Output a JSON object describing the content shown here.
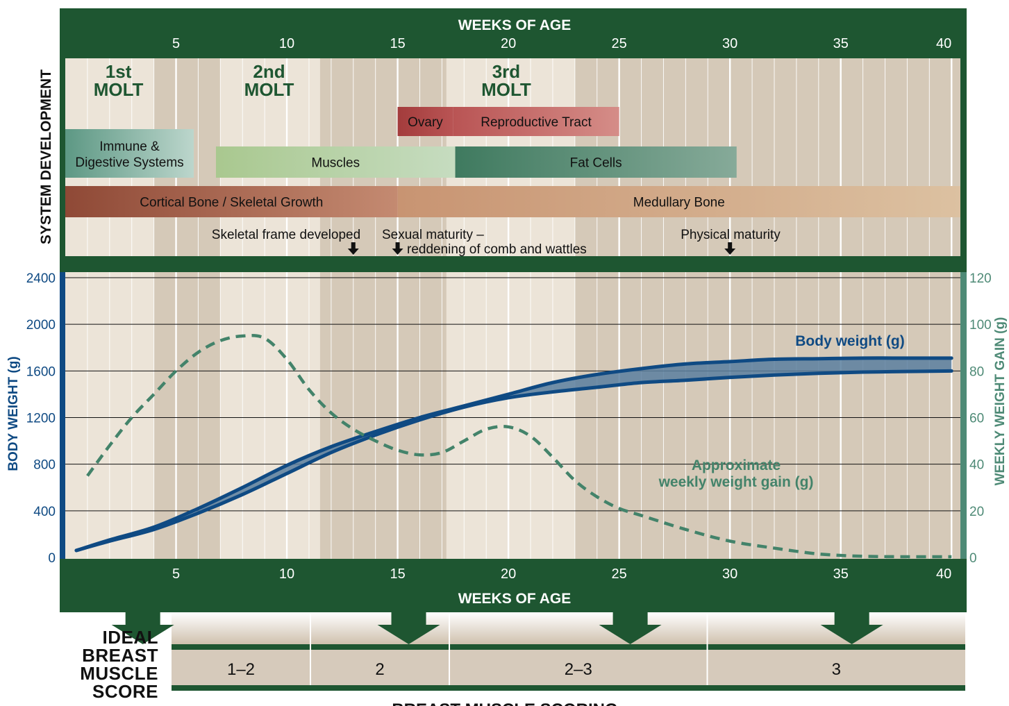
{
  "chart_data": {
    "type": "line",
    "x_axis": {
      "label": "WEEKS OF AGE",
      "min": 0,
      "max": 40,
      "ticks": [
        5,
        10,
        15,
        20,
        25,
        30,
        35,
        40
      ]
    },
    "top_panel_title": "SYSTEM DEVELOPMENT",
    "molts": [
      {
        "label_line1": "1st",
        "label_line2": "MOLT",
        "week": 2.4
      },
      {
        "label_line1": "2nd",
        "label_line2": "MOLT",
        "week": 9.2
      },
      {
        "label_line1": "3rd",
        "label_line2": "MOLT",
        "week": 19.9
      }
    ],
    "bars": [
      {
        "label": "Ovary",
        "start": 15,
        "end": 17.5,
        "row": "repro",
        "color_from": "#a33c3c",
        "color_to": "#b95454"
      },
      {
        "label": "Reproductive Tract",
        "start": 17.5,
        "end": 25,
        "row": "repro",
        "color_from": "#b95454",
        "color_to": "#d58d88"
      },
      {
        "label": "Immune &",
        "label2": "Digestive Systems",
        "start": 0,
        "end": 5.8,
        "row": "immune",
        "color_from": "#5d9884",
        "color_to": "#bcd6cc"
      },
      {
        "label": "Muscles",
        "start": 6.8,
        "end": 17.6,
        "row": "muscle",
        "color_from": "#a9c88f",
        "color_to": "#c6dcc0"
      },
      {
        "label": "Fat Cells",
        "start": 17.6,
        "end": 30.3,
        "row": "muscle",
        "color_from": "#3f7a5f",
        "color_to": "#86aa99"
      },
      {
        "label": "Cortical Bone / Skeletal Growth",
        "start": 0,
        "end": 15,
        "row": "bone",
        "color_from": "#8f4936",
        "color_to": "#c48a71"
      },
      {
        "label": "Medullary Bone",
        "start": 15,
        "end": 40.4,
        "row": "bone",
        "color_from": "#c89472",
        "color_to": "#dcc1a1"
      }
    ],
    "milestones": [
      {
        "label": "Skeletal frame developed",
        "arrow_week": 13
      },
      {
        "label": "Sexual maturity –",
        "label2": "reddening of comb and wattles",
        "arrow_week": 15
      },
      {
        "label": "Physical maturity",
        "arrow_week": 30
      }
    ],
    "y_left": {
      "label": "BODY WEIGHT (g)",
      "min": 0,
      "max": 2400,
      "ticks": [
        0,
        400,
        800,
        1200,
        1600,
        2000,
        2400
      ]
    },
    "y_right": {
      "label": "WEEKLY WEIGHT GAIN (g)",
      "min": 0,
      "max": 120,
      "ticks": [
        0,
        20,
        40,
        60,
        80,
        100,
        120
      ]
    },
    "series": [
      {
        "name": "Body weight (g)",
        "axis": "left",
        "type": "band",
        "x": [
          0,
          2,
          4,
          6,
          8,
          10,
          12,
          14,
          16,
          18,
          20,
          22,
          24,
          26,
          28,
          30,
          32,
          34,
          36,
          38,
          40
        ],
        "upper": [
          60,
          150,
          260,
          420,
          600,
          790,
          950,
          1080,
          1200,
          1300,
          1400,
          1500,
          1570,
          1620,
          1660,
          1680,
          1700,
          1705,
          1710,
          1710,
          1710
        ],
        "lower": [
          60,
          140,
          240,
          380,
          540,
          720,
          900,
          1050,
          1180,
          1290,
          1370,
          1420,
          1460,
          1500,
          1520,
          1545,
          1565,
          1580,
          1590,
          1595,
          1600
        ]
      },
      {
        "name": "Approximate weekly weight gain (g)",
        "axis": "right",
        "type": "dashed",
        "x": [
          1,
          2,
          3,
          4,
          5,
          6,
          7,
          8,
          9,
          10,
          11,
          12,
          13,
          14,
          15,
          16,
          17,
          18,
          19,
          20,
          21,
          22,
          23,
          24,
          25,
          26,
          28,
          30,
          32,
          34,
          36,
          38,
          40
        ],
        "y": [
          35,
          48,
          60,
          70,
          80,
          88,
          93,
          95,
          94,
          85,
          72,
          62,
          55,
          50,
          46,
          44,
          45,
          50,
          55,
          56,
          52,
          43,
          33,
          26,
          21,
          18,
          12,
          7,
          4,
          1.5,
          0.5,
          0.3,
          0.3
        ]
      }
    ],
    "series_labels": [
      {
        "text": "Body weight (g)"
      },
      {
        "text": "Approximate",
        "text2": "weekly weight gain (g)"
      }
    ],
    "molt_shading": [
      [
        4,
        7
      ],
      [
        11.5,
        17.2
      ],
      [
        23,
        40.4
      ]
    ],
    "breast_muscle": {
      "title_lines": [
        "IDEAL",
        "BREAST",
        "MUSCLE",
        "SCORE"
      ],
      "section_label": "BREAST MUSCLE SCORING",
      "arrow_weeks": [
        3.5,
        15.5,
        25.5,
        35.5
      ],
      "segments": [
        {
          "label": "1–2",
          "start": 0,
          "end": 7
        },
        {
          "label": "2",
          "start": 7,
          "end": 14
        },
        {
          "label": "2–3",
          "start": 14,
          "end": 27
        },
        {
          "label": "3",
          "start": 27,
          "end": 40
        }
      ]
    },
    "colors": {
      "frame": "#1e5631",
      "band": "#0f4a83",
      "band_fill": "#5a7f9f",
      "dashed": "#43836a",
      "left_axis": "#0f4a83",
      "right_axis": "#4e8a76",
      "bg_light": "#ece4d8",
      "bg_dark": "#d5c9b8",
      "score_bg": "#d6cabb"
    }
  }
}
